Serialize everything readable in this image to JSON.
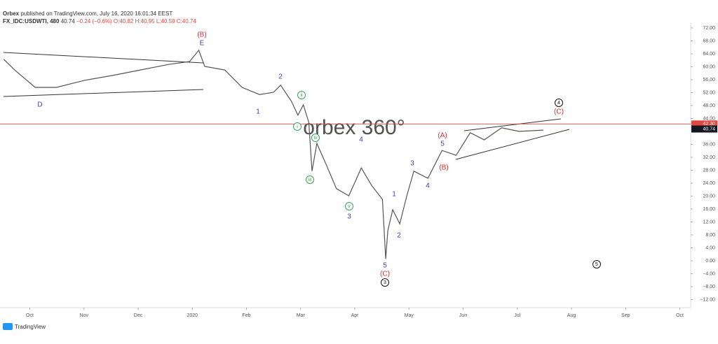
{
  "header": {
    "publisher": "Orbex",
    "published": "published on TradingView.com, July 16, 2020 16:01:34 EEST",
    "symbol": "FX_IDC:USDWTI, 480",
    "price": "40.74",
    "change": "−0.24 (−0.6%)",
    "ohlc": "O:40.82 H:40.95 L:40.59 C:40.74"
  },
  "watermark": "orbex 360°",
  "footer": "TradingView",
  "chart_data": {
    "type": "line",
    "color": "#555555",
    "series": [
      {
        "name": null,
        "color": "#555555",
        "x": [
          -0.48,
          -0.28,
          0.1,
          0.49,
          1.01,
          1.53,
          2.04,
          2.56,
          2.95,
          3.12,
          3.23,
          3.6,
          3.92,
          4.24,
          4.5,
          4.63,
          4.83,
          4.95,
          5.05,
          5.15,
          5.21,
          5.3,
          5.47,
          5.66,
          5.89,
          6.12,
          6.31,
          6.51,
          6.57,
          6.61,
          6.7,
          6.83,
          6.96,
          7.09,
          7.35,
          7.61,
          7.87,
          8.13,
          8.39,
          8.71,
          9.03,
          9.48
        ],
        "values": [
          62.3,
          59,
          53.6,
          53.6,
          55.8,
          57.3,
          59,
          60.7,
          61.6,
          65.1,
          60.1,
          59,
          53.6,
          51.4,
          52.1,
          54.3,
          49.3,
          45,
          48.2,
          42.8,
          27.7,
          36.3,
          29.8,
          22.3,
          20.1,
          28.7,
          23.3,
          19,
          0.6,
          9.3,
          15.8,
          11.4,
          20.1,
          27.7,
          25.5,
          34.1,
          32.6,
          39.6,
          37.4,
          41.1,
          40,
          40.4
        ]
      }
    ],
    "xlim": [
      -0.55,
      12.2
    ],
    "xticks": [
      {
        "value": 0,
        "label": "Oct"
      },
      {
        "value": 1,
        "label": "Nov"
      },
      {
        "value": 2,
        "label": "Dec"
      },
      {
        "value": 3,
        "label": "2020"
      },
      {
        "value": 4,
        "label": "Feb"
      },
      {
        "value": 5,
        "label": "Mar"
      },
      {
        "value": 6,
        "label": "Apr"
      },
      {
        "value": 7,
        "label": "May"
      },
      {
        "value": 8,
        "label": "Jun"
      },
      {
        "value": 9,
        "label": "Jul"
      },
      {
        "value": 10,
        "label": "Aug"
      },
      {
        "value": 11,
        "label": "Sep"
      },
      {
        "value": 12,
        "label": "Oct"
      }
    ],
    "ylim": [
      -14.5,
      73.5
    ],
    "yticks": [
      {
        "value": 72,
        "label": "72.00"
      },
      {
        "value": 68,
        "label": "68.00"
      },
      {
        "value": 64,
        "label": "64.00"
      },
      {
        "value": 60,
        "label": "60.00"
      },
      {
        "value": 56,
        "label": "56.00"
      },
      {
        "value": 52,
        "label": "52.00"
      },
      {
        "value": 48,
        "label": "48.00"
      },
      {
        "value": 44,
        "label": "44.00"
      },
      {
        "value": 36,
        "label": "36.00"
      },
      {
        "value": 32,
        "label": "32.00"
      },
      {
        "value": 28,
        "label": "28.00"
      },
      {
        "value": 24,
        "label": "24.00"
      },
      {
        "value": 20,
        "label": "20.00"
      },
      {
        "value": 16,
        "label": "16.00"
      },
      {
        "value": 12,
        "label": "12.00"
      },
      {
        "value": 8,
        "label": "8.00"
      },
      {
        "value": 4,
        "label": "4.00"
      },
      {
        "value": 0,
        "label": "0.00"
      },
      {
        "value": -4,
        "label": "−4.00"
      },
      {
        "value": -8,
        "label": "−8.00"
      },
      {
        "value": -12,
        "label": "−12.00"
      }
    ],
    "price_line": {
      "value": 42.3,
      "label": "42.30",
      "color": "#e0473f"
    },
    "last_price": {
      "value": 40.74,
      "label": "40.74",
      "color": "#131722"
    },
    "annotations": [
      {
        "text": "(B)",
        "color": "#d32f2f"
      },
      {
        "text": "E",
        "color": "#3f3fa8"
      },
      {
        "text": "D",
        "color": "#3f3fa8"
      },
      {
        "text": "2",
        "color": "#3f3fa8"
      },
      {
        "text": "1",
        "color": "#3f3fa8"
      },
      {
        "text": "ii",
        "color": "#3aa35a",
        "circled": true
      },
      {
        "text": "i",
        "color": "#3aa35a",
        "circled": true
      },
      {
        "text": "iv",
        "color": "#3aa35a",
        "circled": true
      },
      {
        "text": "iii",
        "color": "#3aa35a",
        "circled": true
      },
      {
        "text": "v",
        "color": "#3aa35a",
        "circled": true
      },
      {
        "text": "3",
        "color": "#3f3fa8"
      },
      {
        "text": "4",
        "color": "#3f3fa8"
      },
      {
        "text": "1",
        "color": "#3f3fa8"
      },
      {
        "text": "2",
        "color": "#3f3fa8"
      },
      {
        "text": "5",
        "color": "#3f3fa8"
      },
      {
        "text": "(C)",
        "color": "#d32f2f"
      },
      {
        "text": "3",
        "color": "#111111",
        "circled": true
      },
      {
        "text": "3",
        "color": "#3f3fa8"
      },
      {
        "text": "4",
        "color": "#3f3fa8"
      },
      {
        "text": "5",
        "color": "#3f3fa8"
      },
      {
        "text": "(A)",
        "color": "#d32f2f"
      },
      {
        "text": "(B)",
        "color": "#d32f2f"
      },
      {
        "text": "4",
        "color": "#111111",
        "circled": true
      },
      {
        "text": "(C)",
        "color": "#d32f2f"
      },
      {
        "text": "5",
        "color": "#111111",
        "circled": true
      }
    ]
  }
}
